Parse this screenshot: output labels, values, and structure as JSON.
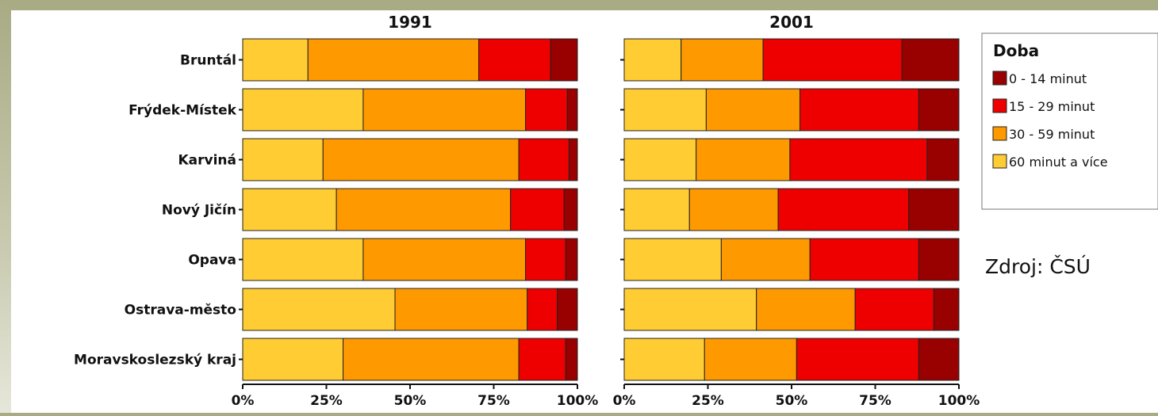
{
  "chart_data": {
    "type": "bar",
    "orientation": "horizontal",
    "stacked": true,
    "categories": [
      "Bruntál",
      "Frýdek-Místek",
      "Karviná",
      "Nový Jičín",
      "Opava",
      "Ostrava-město",
      "Moravskoslezský kraj"
    ],
    "series_order": [
      "60 minut a více",
      "30 - 59 minut",
      "15 - 29 minut",
      "0 - 14 minut"
    ],
    "colors": {
      "0 - 14 minut": "#990000",
      "15 - 29 minut": "#ee0000",
      "30 - 59 minut": "#ff9900",
      "60 minut a více": "#ffcc33"
    },
    "panels": [
      {
        "title": "1991",
        "series": [
          {
            "name": "60 minut a více",
            "values": [
              19.5,
              36,
              24,
              28,
              36,
              45.5,
              30
            ]
          },
          {
            "name": "30 - 59 minut",
            "values": [
              51,
              48.5,
              58.5,
              52,
              48.5,
              39.5,
              52.5
            ]
          },
          {
            "name": "15 - 29 minut",
            "values": [
              21.5,
              12.5,
              15,
              16,
              12,
              9,
              14
            ]
          },
          {
            "name": "0 - 14 minut",
            "values": [
              8,
              3,
              2.5,
              4,
              3.5,
              6,
              3.5
            ]
          }
        ]
      },
      {
        "title": "2001",
        "series": [
          {
            "name": "60 minut a více",
            "values": [
              17,
              24.5,
              21.5,
              19.5,
              29,
              39.5,
              24
            ]
          },
          {
            "name": "30 - 59 minut",
            "values": [
              24.5,
              28,
              28,
              26.5,
              26.5,
              29.5,
              27.5
            ]
          },
          {
            "name": "15 - 29 minut",
            "values": [
              41.5,
              35.5,
              41,
              39,
              32.5,
              23.5,
              36.5
            ]
          },
          {
            "name": "0 - 14 minut",
            "values": [
              17,
              12,
              9.5,
              15,
              12,
              7.5,
              12
            ]
          }
        ]
      }
    ],
    "xticks": [
      "0%",
      "25%",
      "50%",
      "75%",
      "100%"
    ],
    "xlim": [
      0,
      100
    ],
    "legend": {
      "title": "Doba",
      "entries": [
        "0 - 14 minut",
        "15 - 29 minut",
        "30 - 59 minut",
        "60 minut a více"
      ],
      "placement": "right"
    },
    "source": "Zdroj: ČSÚ"
  }
}
